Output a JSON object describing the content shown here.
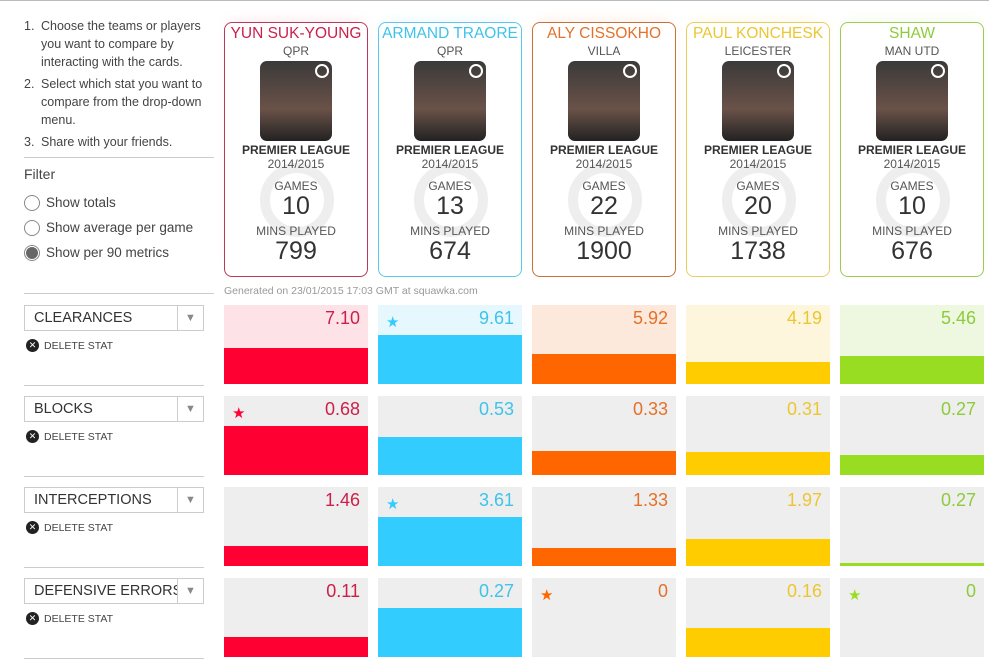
{
  "instructions": [
    "Choose the teams or players you want to compare by interacting with the cards.",
    "Select which stat you want to compare from the drop-down menu.",
    "Share with your friends."
  ],
  "filter": {
    "title": "Filter",
    "options": [
      {
        "label": "Show totals",
        "selected": false
      },
      {
        "label": "Show average per game",
        "selected": false
      },
      {
        "label": "Show per 90 metrics",
        "selected": true
      }
    ]
  },
  "labels": {
    "league": "PREMIER LEAGUE",
    "season": "2014/2015",
    "games": "GAMES",
    "mins": "MINS PLAYED",
    "delete": "DELETE STAT",
    "generated": "Generated on 23/01/2015 17:03 GMT at squawka.com"
  },
  "players": [
    {
      "name": "YUN SUK-YOUNG",
      "team": "QPR",
      "games": "10",
      "mins": "799",
      "color": "#cc1f4a",
      "border": "#b83a5a",
      "bar": "#ff0033",
      "tint": "#fde3e8"
    },
    {
      "name": "ARMAND TRAORE",
      "team": "QPR",
      "games": "13",
      "mins": "674",
      "color": "#3ec3ea",
      "border": "#5ec8e8",
      "bar": "#33ccff",
      "tint": "#e6f8fe"
    },
    {
      "name": "ALY CISSOKHO",
      "team": "VILLA",
      "games": "22",
      "mins": "1900",
      "color": "#e4712a",
      "border": "#c8703a",
      "bar": "#ff6600",
      "tint": "#fde9dc"
    },
    {
      "name": "PAUL KONCHESK",
      "team": "LEICESTER",
      "games": "20",
      "mins": "1738",
      "color": "#ecc630",
      "border": "#e6cf5e",
      "bar": "#ffcc00",
      "tint": "#fdf6dd"
    },
    {
      "name": "SHAW",
      "team": "MAN UTD",
      "games": "10",
      "mins": "676",
      "color": "#8ccc3a",
      "border": "#9ccc50",
      "bar": "#99dd22",
      "tint": "#eef8e0"
    }
  ],
  "stats": [
    {
      "name": "CLEARANCES",
      "values": [
        "7.10",
        "9.61",
        "5.92",
        "4.19",
        "5.46"
      ],
      "fill": [
        0.74,
        1,
        0.62,
        0.44,
        0.57
      ],
      "star": [
        false,
        true,
        false,
        false,
        false
      ],
      "tinted": true
    },
    {
      "name": "BLOCKS",
      "values": [
        "0.68",
        "0.53",
        "0.33",
        "0.31",
        "0.27"
      ],
      "fill": [
        1,
        0.78,
        0.49,
        0.46,
        0.4
      ],
      "star": [
        true,
        false,
        false,
        false,
        false
      ],
      "tinted": false
    },
    {
      "name": "INTERCEPTIONS",
      "values": [
        "1.46",
        "3.61",
        "1.33",
        "1.97",
        "0.27"
      ],
      "fill": [
        0.4,
        1,
        0.37,
        0.55,
        0.07
      ],
      "star": [
        false,
        true,
        false,
        false,
        false
      ],
      "tinted": false
    },
    {
      "name": "DEFENSIVE ERRORS",
      "values": [
        "0.11",
        "0.27",
        "0",
        "0.16",
        "0"
      ],
      "fill": [
        0.41,
        1,
        0,
        0.59,
        0
      ],
      "star": [
        false,
        false,
        true,
        false,
        true
      ],
      "tinted": false
    }
  ]
}
